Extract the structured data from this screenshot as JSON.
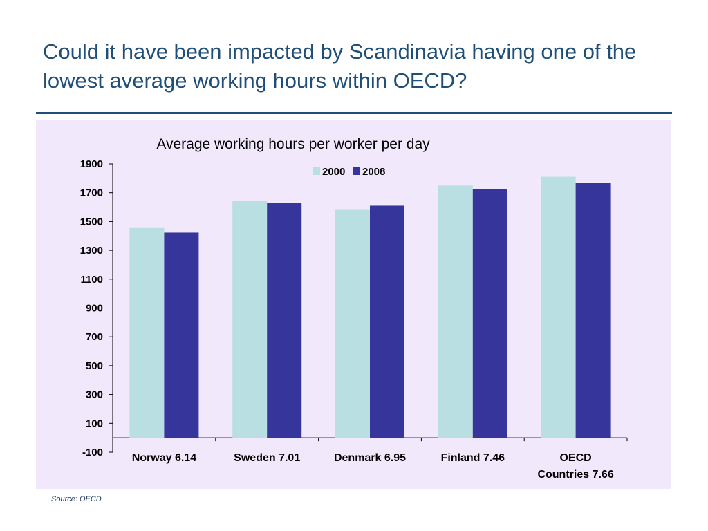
{
  "slide": {
    "title": "Could it have been impacted by Scandinavia having one of the lowest average working hours within OECD?",
    "source": "Source: OECD"
  },
  "colors": {
    "title": "#1f4e79",
    "panel_background": "#f1e9fb",
    "series_2000": "#b9dfe2",
    "series_2008": "#35359b"
  },
  "chart_data": {
    "type": "bar",
    "title": "Average  working hours per worker per day",
    "xlabel": "",
    "ylabel": "",
    "categories": [
      "Norway 6.14",
      "Sweden 7.01",
      "Denmark 6.95",
      "Finland 7.46",
      "OECD Countries 7.66"
    ],
    "series": [
      {
        "name": "2000",
        "values": [
          1455,
          1644,
          1581,
          1750,
          1811
        ],
        "color": "#b9dfe2"
      },
      {
        "name": "2008",
        "values": [
          1423,
          1627,
          1610,
          1727,
          1768
        ],
        "color": "#35359b"
      }
    ],
    "ylim": [
      -100,
      1900
    ],
    "yticks": [
      -100,
      100,
      300,
      500,
      700,
      900,
      1100,
      1300,
      1500,
      1700,
      1900
    ],
    "grid": false,
    "legend": "top-center"
  }
}
